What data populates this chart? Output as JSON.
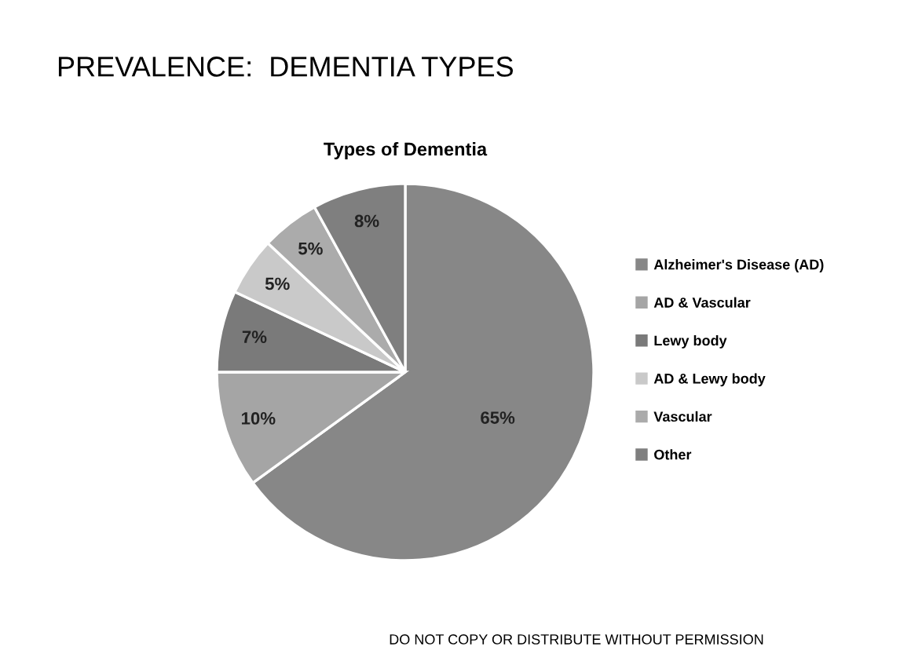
{
  "chart_data": {
    "type": "pie",
    "title": "PREVALENCE:  DEMENTIA TYPES",
    "subtitle": "Types of Dementia",
    "categories": [
      "Alzheimer's Disease (AD)",
      "AD & Vascular",
      "Lewy body",
      "AD & Lewy body",
      "Vascular",
      "Other"
    ],
    "values": [
      65,
      10,
      7,
      5,
      5,
      8
    ],
    "colors": [
      "#878787",
      "#a5a5a5",
      "#7a7a7a",
      "#c9c9c9",
      "#ababab",
      "#7f7f7f"
    ],
    "value_labels": [
      "65%",
      "10%",
      "7%",
      "5%",
      "5%",
      "8%"
    ],
    "legend": "right",
    "annotations": [
      "DO NOT COPY OR DISTRIBUTE WITHOUT PERMISSION"
    ]
  }
}
